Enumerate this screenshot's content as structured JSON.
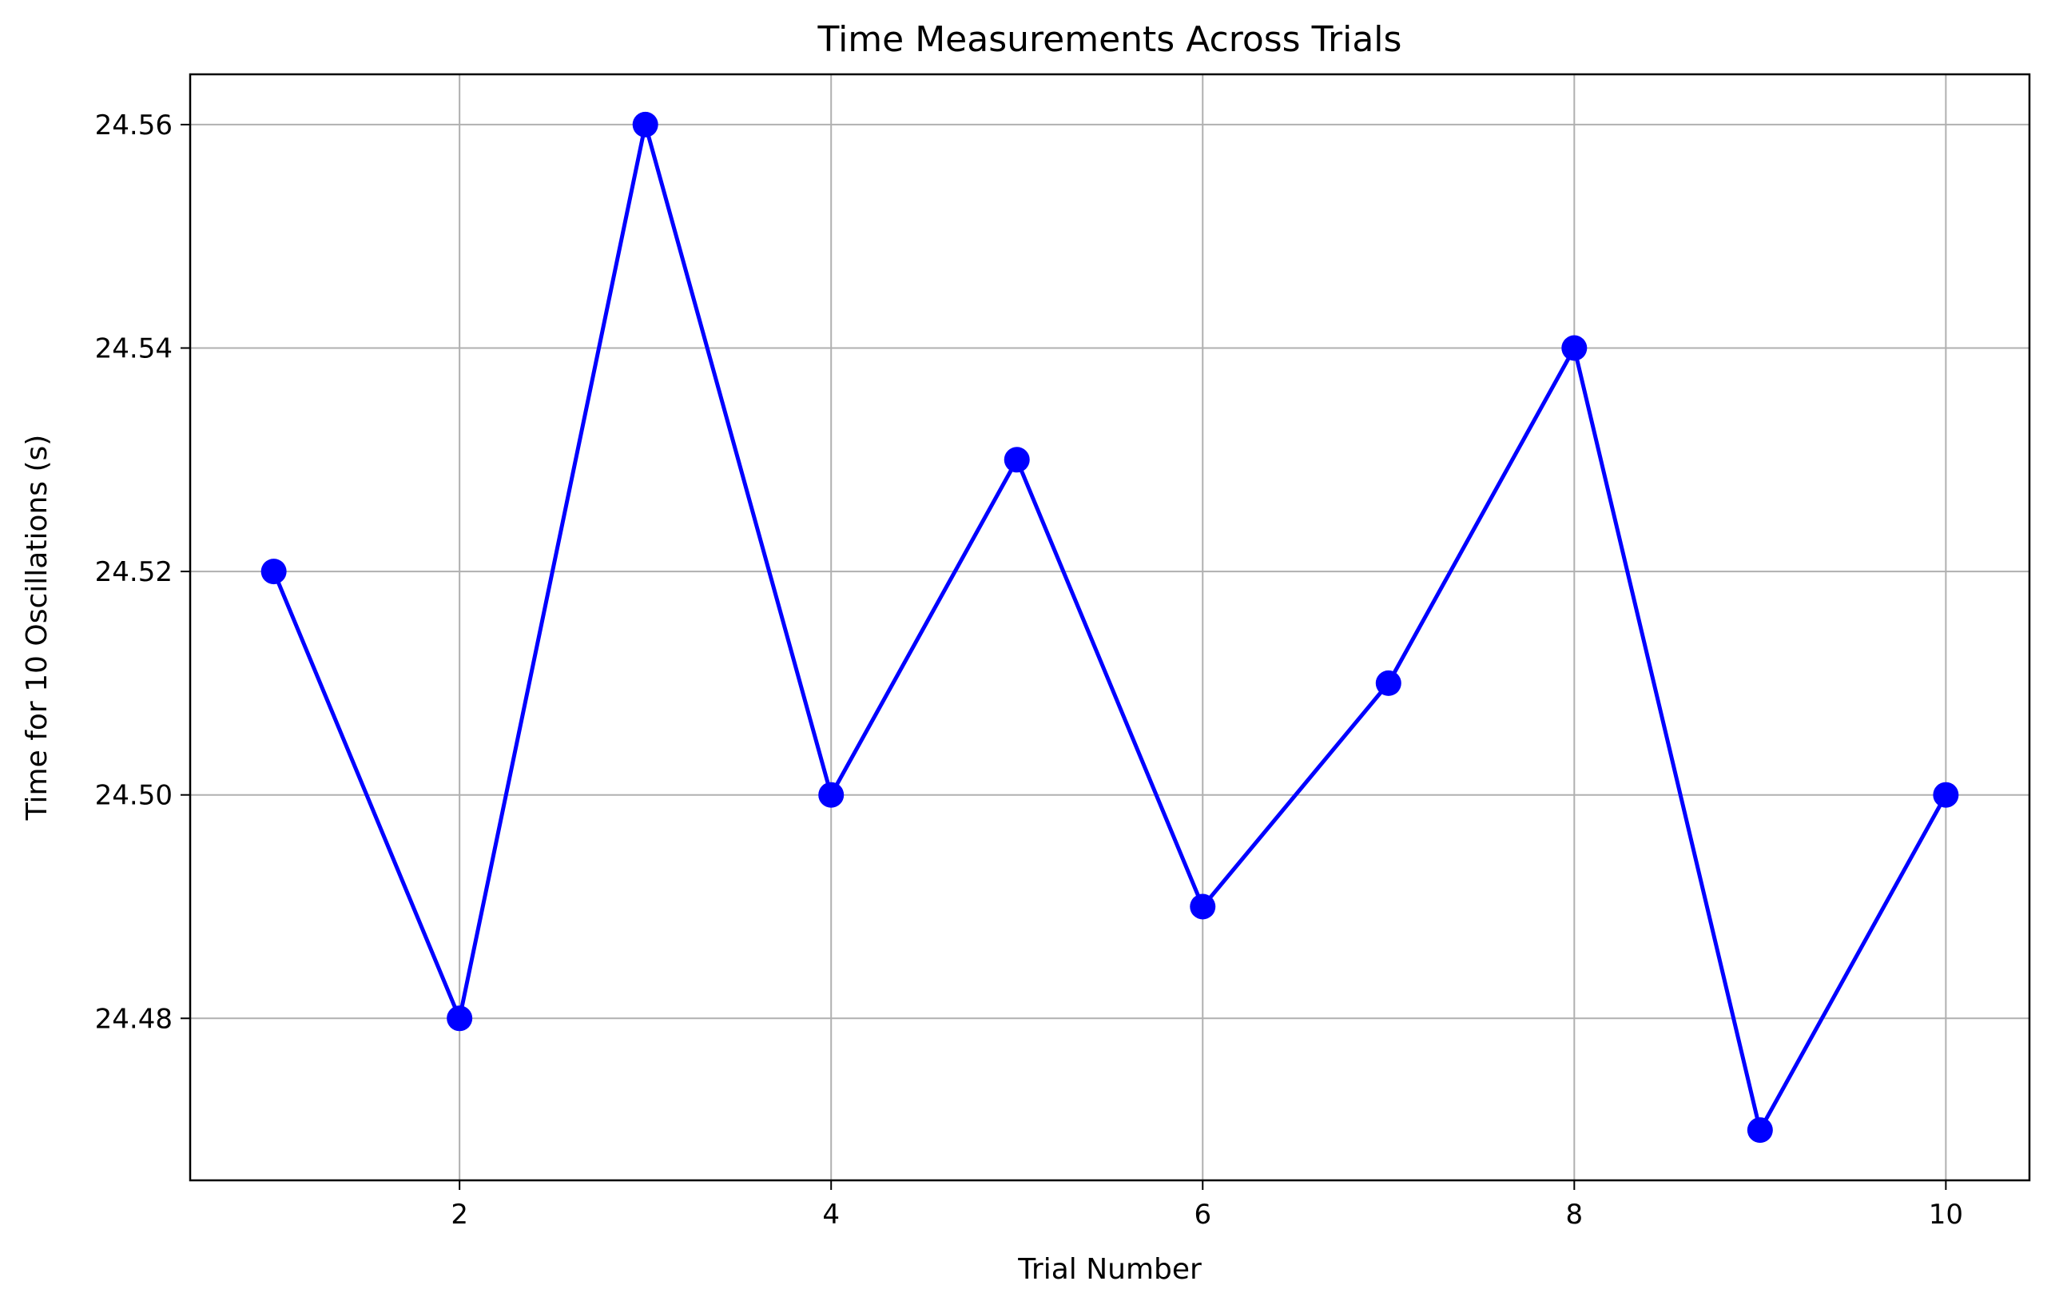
{
  "chart_data": {
    "type": "line",
    "title": "Time Measurements Across Trials",
    "xlabel": "Trial Number",
    "ylabel": "Time for 10 Oscillations (s)",
    "x": [
      1,
      2,
      3,
      4,
      5,
      6,
      7,
      8,
      9,
      10
    ],
    "series": [
      {
        "values": [
          24.52,
          24.48,
          24.56,
          24.5,
          24.53,
          24.49,
          24.51,
          24.54,
          24.47,
          24.5
        ],
        "color": "#0000ff",
        "marker": "circle"
      }
    ],
    "xlim": [
      0.55,
      10.45
    ],
    "ylim": [
      24.4655,
      24.5645
    ],
    "xticks": [
      2,
      4,
      6,
      8,
      10
    ],
    "xtick_labels": [
      "2",
      "4",
      "6",
      "8",
      "10"
    ],
    "yticks": [
      24.48,
      24.5,
      24.52,
      24.54,
      24.56
    ],
    "ytick_labels": [
      "24.48",
      "24.50",
      "24.52",
      "24.54",
      "24.56"
    ],
    "grid": true,
    "grid_color": "#b0b0b0",
    "legend": false
  }
}
